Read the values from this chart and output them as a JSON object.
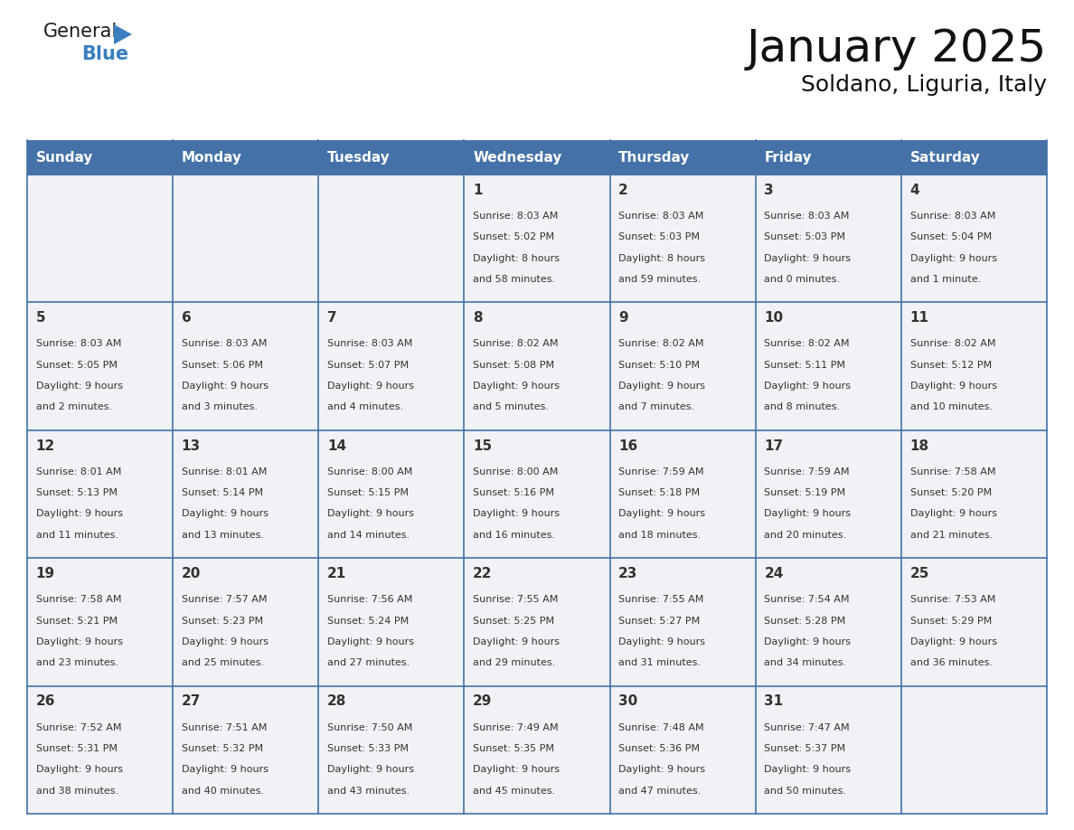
{
  "title": "January 2025",
  "subtitle": "Soldano, Liguria, Italy",
  "header_color": "#4472a8",
  "header_text_color": "#ffffff",
  "cell_bg_even": "#f0f2f5",
  "cell_bg_odd": "#ffffff",
  "border_color": "#4472a8",
  "text_color": "#333333",
  "day_number_color": "#333333",
  "day_headers": [
    "Sunday",
    "Monday",
    "Tuesday",
    "Wednesday",
    "Thursday",
    "Friday",
    "Saturday"
  ],
  "days": [
    {
      "day": 1,
      "col": 3,
      "row": 0,
      "sunrise": "8:03 AM",
      "sunset": "5:02 PM",
      "daylight_h": "8 hours",
      "daylight_m": "and 58 minutes."
    },
    {
      "day": 2,
      "col": 4,
      "row": 0,
      "sunrise": "8:03 AM",
      "sunset": "5:03 PM",
      "daylight_h": "8 hours",
      "daylight_m": "and 59 minutes."
    },
    {
      "day": 3,
      "col": 5,
      "row": 0,
      "sunrise": "8:03 AM",
      "sunset": "5:03 PM",
      "daylight_h": "9 hours",
      "daylight_m": "and 0 minutes."
    },
    {
      "day": 4,
      "col": 6,
      "row": 0,
      "sunrise": "8:03 AM",
      "sunset": "5:04 PM",
      "daylight_h": "9 hours",
      "daylight_m": "and 1 minute."
    },
    {
      "day": 5,
      "col": 0,
      "row": 1,
      "sunrise": "8:03 AM",
      "sunset": "5:05 PM",
      "daylight_h": "9 hours",
      "daylight_m": "and 2 minutes."
    },
    {
      "day": 6,
      "col": 1,
      "row": 1,
      "sunrise": "8:03 AM",
      "sunset": "5:06 PM",
      "daylight_h": "9 hours",
      "daylight_m": "and 3 minutes."
    },
    {
      "day": 7,
      "col": 2,
      "row": 1,
      "sunrise": "8:03 AM",
      "sunset": "5:07 PM",
      "daylight_h": "9 hours",
      "daylight_m": "and 4 minutes."
    },
    {
      "day": 8,
      "col": 3,
      "row": 1,
      "sunrise": "8:02 AM",
      "sunset": "5:08 PM",
      "daylight_h": "9 hours",
      "daylight_m": "and 5 minutes."
    },
    {
      "day": 9,
      "col": 4,
      "row": 1,
      "sunrise": "8:02 AM",
      "sunset": "5:10 PM",
      "daylight_h": "9 hours",
      "daylight_m": "and 7 minutes."
    },
    {
      "day": 10,
      "col": 5,
      "row": 1,
      "sunrise": "8:02 AM",
      "sunset": "5:11 PM",
      "daylight_h": "9 hours",
      "daylight_m": "and 8 minutes."
    },
    {
      "day": 11,
      "col": 6,
      "row": 1,
      "sunrise": "8:02 AM",
      "sunset": "5:12 PM",
      "daylight_h": "9 hours",
      "daylight_m": "and 10 minutes."
    },
    {
      "day": 12,
      "col": 0,
      "row": 2,
      "sunrise": "8:01 AM",
      "sunset": "5:13 PM",
      "daylight_h": "9 hours",
      "daylight_m": "and 11 minutes."
    },
    {
      "day": 13,
      "col": 1,
      "row": 2,
      "sunrise": "8:01 AM",
      "sunset": "5:14 PM",
      "daylight_h": "9 hours",
      "daylight_m": "and 13 minutes."
    },
    {
      "day": 14,
      "col": 2,
      "row": 2,
      "sunrise": "8:00 AM",
      "sunset": "5:15 PM",
      "daylight_h": "9 hours",
      "daylight_m": "and 14 minutes."
    },
    {
      "day": 15,
      "col": 3,
      "row": 2,
      "sunrise": "8:00 AM",
      "sunset": "5:16 PM",
      "daylight_h": "9 hours",
      "daylight_m": "and 16 minutes."
    },
    {
      "day": 16,
      "col": 4,
      "row": 2,
      "sunrise": "7:59 AM",
      "sunset": "5:18 PM",
      "daylight_h": "9 hours",
      "daylight_m": "and 18 minutes."
    },
    {
      "day": 17,
      "col": 5,
      "row": 2,
      "sunrise": "7:59 AM",
      "sunset": "5:19 PM",
      "daylight_h": "9 hours",
      "daylight_m": "and 20 minutes."
    },
    {
      "day": 18,
      "col": 6,
      "row": 2,
      "sunrise": "7:58 AM",
      "sunset": "5:20 PM",
      "daylight_h": "9 hours",
      "daylight_m": "and 21 minutes."
    },
    {
      "day": 19,
      "col": 0,
      "row": 3,
      "sunrise": "7:58 AM",
      "sunset": "5:21 PM",
      "daylight_h": "9 hours",
      "daylight_m": "and 23 minutes."
    },
    {
      "day": 20,
      "col": 1,
      "row": 3,
      "sunrise": "7:57 AM",
      "sunset": "5:23 PM",
      "daylight_h": "9 hours",
      "daylight_m": "and 25 minutes."
    },
    {
      "day": 21,
      "col": 2,
      "row": 3,
      "sunrise": "7:56 AM",
      "sunset": "5:24 PM",
      "daylight_h": "9 hours",
      "daylight_m": "and 27 minutes."
    },
    {
      "day": 22,
      "col": 3,
      "row": 3,
      "sunrise": "7:55 AM",
      "sunset": "5:25 PM",
      "daylight_h": "9 hours",
      "daylight_m": "and 29 minutes."
    },
    {
      "day": 23,
      "col": 4,
      "row": 3,
      "sunrise": "7:55 AM",
      "sunset": "5:27 PM",
      "daylight_h": "9 hours",
      "daylight_m": "and 31 minutes."
    },
    {
      "day": 24,
      "col": 5,
      "row": 3,
      "sunrise": "7:54 AM",
      "sunset": "5:28 PM",
      "daylight_h": "9 hours",
      "daylight_m": "and 34 minutes."
    },
    {
      "day": 25,
      "col": 6,
      "row": 3,
      "sunrise": "7:53 AM",
      "sunset": "5:29 PM",
      "daylight_h": "9 hours",
      "daylight_m": "and 36 minutes."
    },
    {
      "day": 26,
      "col": 0,
      "row": 4,
      "sunrise": "7:52 AM",
      "sunset": "5:31 PM",
      "daylight_h": "9 hours",
      "daylight_m": "and 38 minutes."
    },
    {
      "day": 27,
      "col": 1,
      "row": 4,
      "sunrise": "7:51 AM",
      "sunset": "5:32 PM",
      "daylight_h": "9 hours",
      "daylight_m": "and 40 minutes."
    },
    {
      "day": 28,
      "col": 2,
      "row": 4,
      "sunrise": "7:50 AM",
      "sunset": "5:33 PM",
      "daylight_h": "9 hours",
      "daylight_m": "and 43 minutes."
    },
    {
      "day": 29,
      "col": 3,
      "row": 4,
      "sunrise": "7:49 AM",
      "sunset": "5:35 PM",
      "daylight_h": "9 hours",
      "daylight_m": "and 45 minutes."
    },
    {
      "day": 30,
      "col": 4,
      "row": 4,
      "sunrise": "7:48 AM",
      "sunset": "5:36 PM",
      "daylight_h": "9 hours",
      "daylight_m": "and 47 minutes."
    },
    {
      "day": 31,
      "col": 5,
      "row": 4,
      "sunrise": "7:47 AM",
      "sunset": "5:37 PM",
      "daylight_h": "9 hours",
      "daylight_m": "and 50 minutes."
    }
  ],
  "logo_text1": "General",
  "logo_text2": "Blue",
  "logo_color1": "#1a1a1a",
  "logo_color2": "#3a7ebf",
  "logo_triangle_color": "#3a7ebf",
  "title_fontsize": 36,
  "subtitle_fontsize": 18,
  "header_fontsize": 11,
  "day_num_fontsize": 11,
  "cell_text_fontsize": 8
}
